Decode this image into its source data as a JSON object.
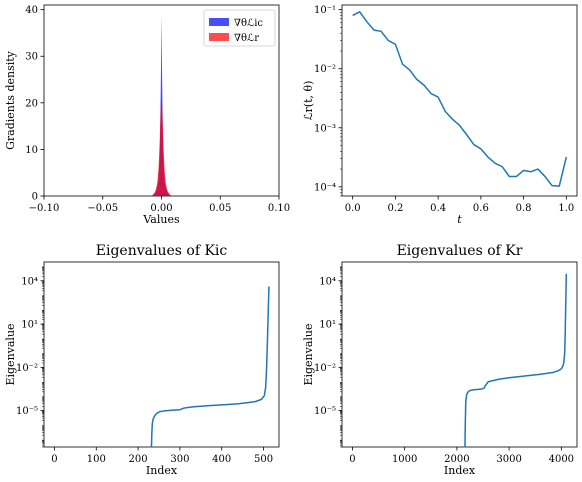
{
  "chart_data": [
    {
      "type": "area",
      "xlabel": "Values",
      "ylabel": "Gradients density",
      "xlim": [
        -0.1,
        0.1
      ],
      "ylim": [
        0,
        41
      ],
      "xticks": [
        -0.1,
        -0.05,
        0.0,
        0.05,
        0.1
      ],
      "xtick_labels": [
        "−0.10",
        "−0.05",
        "0.00",
        "0.05",
        "0.10"
      ],
      "yticks": [
        0,
        10,
        20,
        30,
        40
      ],
      "ytick_labels": [
        "0",
        "10",
        "20",
        "30",
        "40"
      ],
      "legend_position": "top-right",
      "series": [
        {
          "name": "∇θℒic",
          "color": "#0000ff",
          "x": [
            -0.0085,
            -0.0065,
            -0.005,
            -0.0035,
            -0.0025,
            -0.0015,
            -0.001,
            -0.0005,
            0.0,
            0.0005,
            0.001,
            0.0015,
            0.0025,
            0.0035,
            0.005,
            0.0065,
            0.0085
          ],
          "y": [
            0,
            0.3,
            0.8,
            2,
            4,
            9,
            16,
            26,
            39,
            26,
            16,
            9,
            4,
            2,
            0.8,
            0.3,
            0
          ]
        },
        {
          "name": "∇θℒr",
          "color": "#ff0000",
          "x": [
            -0.0085,
            -0.0065,
            -0.005,
            -0.0035,
            -0.0025,
            -0.0015,
            -0.001,
            -0.0005,
            0.0,
            0.0005,
            0.001,
            0.0015,
            0.0025,
            0.0035,
            0.005,
            0.0065,
            0.0085
          ],
          "y": [
            0,
            0.5,
            1.2,
            3,
            6,
            12,
            16,
            20,
            22.5,
            20,
            16,
            12,
            6,
            3,
            1.2,
            0.5,
            0
          ]
        }
      ]
    },
    {
      "type": "line",
      "xlabel": "t",
      "ylabel": "ℒr(t, θ)",
      "xlim": [
        -0.05,
        1.05
      ],
      "ylim": [
        7e-05,
        0.12
      ],
      "yscale": "log",
      "xticks": [
        0.0,
        0.2,
        0.4,
        0.6,
        0.8,
        1.0
      ],
      "xtick_labels": [
        "0.0",
        "0.2",
        "0.4",
        "0.6",
        "0.8",
        "1.0"
      ],
      "yticks": [
        0.1,
        0.01,
        0.001,
        0.0001
      ],
      "ytick_labels": [
        "10⁻¹",
        "10⁻²",
        "10⁻³",
        "10⁻⁴"
      ],
      "color": "#1f77b4",
      "x": [
        0.0,
        0.033,
        0.067,
        0.1,
        0.133,
        0.167,
        0.2,
        0.233,
        0.267,
        0.3,
        0.333,
        0.367,
        0.4,
        0.433,
        0.467,
        0.5,
        0.533,
        0.567,
        0.6,
        0.633,
        0.667,
        0.7,
        0.733,
        0.767,
        0.8,
        0.833,
        0.867,
        0.9,
        0.933,
        0.967,
        1.0
      ],
      "y": [
        0.08,
        0.092,
        0.062,
        0.045,
        0.043,
        0.03,
        0.026,
        0.012,
        0.0095,
        0.0066,
        0.0053,
        0.0038,
        0.0033,
        0.0019,
        0.0014,
        0.0011,
        0.00077,
        0.00052,
        0.00044,
        0.00032,
        0.00025,
        0.00022,
        0.00015,
        0.00015,
        0.00019,
        0.00018,
        0.0002,
        0.00015,
        0.000105,
        0.000103,
        0.00032
      ]
    },
    {
      "type": "line",
      "title": "Eigenvalues of Kic",
      "xlabel": "Index",
      "ylabel": "Eigenvalue",
      "xlim": [
        -25,
        537
      ],
      "ylim": [
        3e-08,
        200000
      ],
      "yscale": "log",
      "xticks": [
        0,
        100,
        200,
        300,
        400,
        500
      ],
      "xtick_labels": [
        "0",
        "100",
        "200",
        "300",
        "400",
        "500"
      ],
      "yticks": [
        1e-05,
        0.01,
        10,
        10000
      ],
      "ytick_labels": [
        "10⁻⁵",
        "10⁻²",
        "10¹",
        "10⁴"
      ],
      "color": "#1f77b4",
      "x": [
        232,
        233,
        234,
        236,
        240,
        245,
        252,
        262,
        280,
        300,
        310,
        330,
        370,
        410,
        440,
        460,
        480,
        495,
        502,
        505,
        507,
        509,
        511,
        513
      ],
      "y": [
        3e-08,
        3e-07,
        1.2e-06,
        2.6e-06,
        4.5e-06,
        6.5e-06,
        8.5e-06,
        9.5e-06,
        1.05e-05,
        1.15e-05,
        1.5e-05,
        1.8e-05,
        2.2e-05,
        2.6e-05,
        3e-05,
        3.5e-05,
        4.2e-05,
        6e-05,
        0.00011,
        0.0004,
        0.005,
        0.3,
        40,
        4000
      ]
    },
    {
      "type": "line",
      "title": "Eigenvalues of Kr",
      "xlabel": "Index",
      "ylabel": "Eigenvalue",
      "xlim": [
        -200,
        4300
      ],
      "ylim": [
        3e-08,
        200000
      ],
      "yscale": "log",
      "xticks": [
        0,
        1000,
        2000,
        3000,
        4000
      ],
      "xtick_labels": [
        "0",
        "1000",
        "2000",
        "3000",
        "4000"
      ],
      "yticks": [
        1e-05,
        0.01,
        10,
        10000
      ],
      "ytick_labels": [
        "10⁻⁵",
        "10⁻²",
        "10¹",
        "10⁴"
      ],
      "color": "#1f77b4",
      "x": [
        2155,
        2158,
        2162,
        2170,
        2185,
        2210,
        2250,
        2320,
        2450,
        2520,
        2540,
        2600,
        2800,
        3000,
        3300,
        3600,
        3850,
        3950,
        4000,
        4030,
        4050,
        4065,
        4075,
        4085,
        4095
      ],
      "y": [
        3e-08,
        3e-07,
        2e-06,
        4e-05,
        0.00012,
        0.00019,
        0.00025,
        0.00028,
        0.0003,
        0.00035,
        0.0005,
        0.001,
        0.0015,
        0.0019,
        0.0025,
        0.0033,
        0.0045,
        0.006,
        0.008,
        0.012,
        0.025,
        0.12,
        3,
        300,
        30000
      ]
    }
  ]
}
